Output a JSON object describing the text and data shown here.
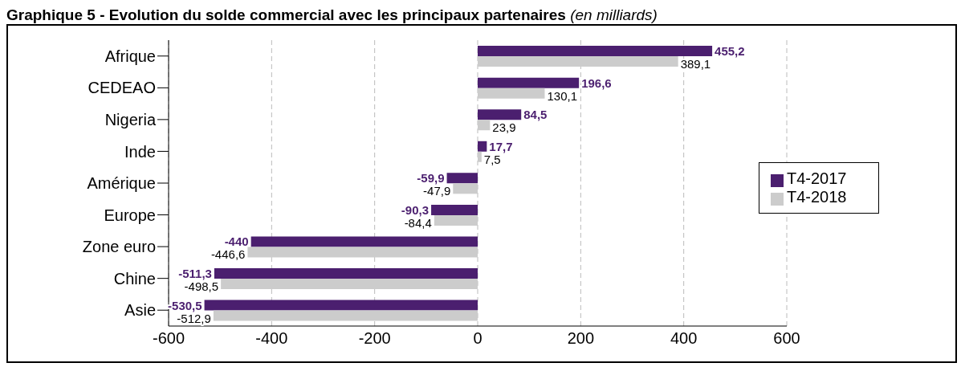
{
  "chart_data": {
    "type": "bar",
    "orientation": "horizontal",
    "title": "Graphique 5 - Evolution du solde commercial avec les principaux partenaires",
    "subtitle": "(en milliards)",
    "categories": [
      "Afrique",
      "CEDEAO",
      "Nigeria",
      "Inde",
      "Amérique",
      "Europe",
      "Zone euro",
      "Chine",
      "Asie"
    ],
    "series": [
      {
        "name": "T4-2017",
        "color": "#4b1f6f",
        "values": [
          455.2,
          196.6,
          84.5,
          17.7,
          -59.9,
          -90.3,
          -440,
          -511.3,
          -530.5
        ],
        "value_labels": [
          "455,2",
          "196,6",
          "84,5",
          "17,7",
          "-59,9",
          "-90,3",
          "-440",
          "-511,3",
          "-530,5"
        ]
      },
      {
        "name": "T4-2018",
        "color": "#cccccc",
        "values": [
          389.1,
          130.1,
          23.9,
          7.5,
          -47.9,
          -84.4,
          -446.6,
          -498.5,
          -512.9
        ],
        "value_labels": [
          "389,1",
          "130,1",
          "23,9",
          "7,5",
          "-47,9",
          "-84,4",
          "-446,6",
          "-498,5",
          "-512,9"
        ]
      }
    ],
    "xlim": [
      -600,
      600
    ],
    "xticks": [
      -600,
      -400,
      -200,
      0,
      200,
      400,
      600
    ],
    "grid": "x",
    "legend": "right"
  }
}
